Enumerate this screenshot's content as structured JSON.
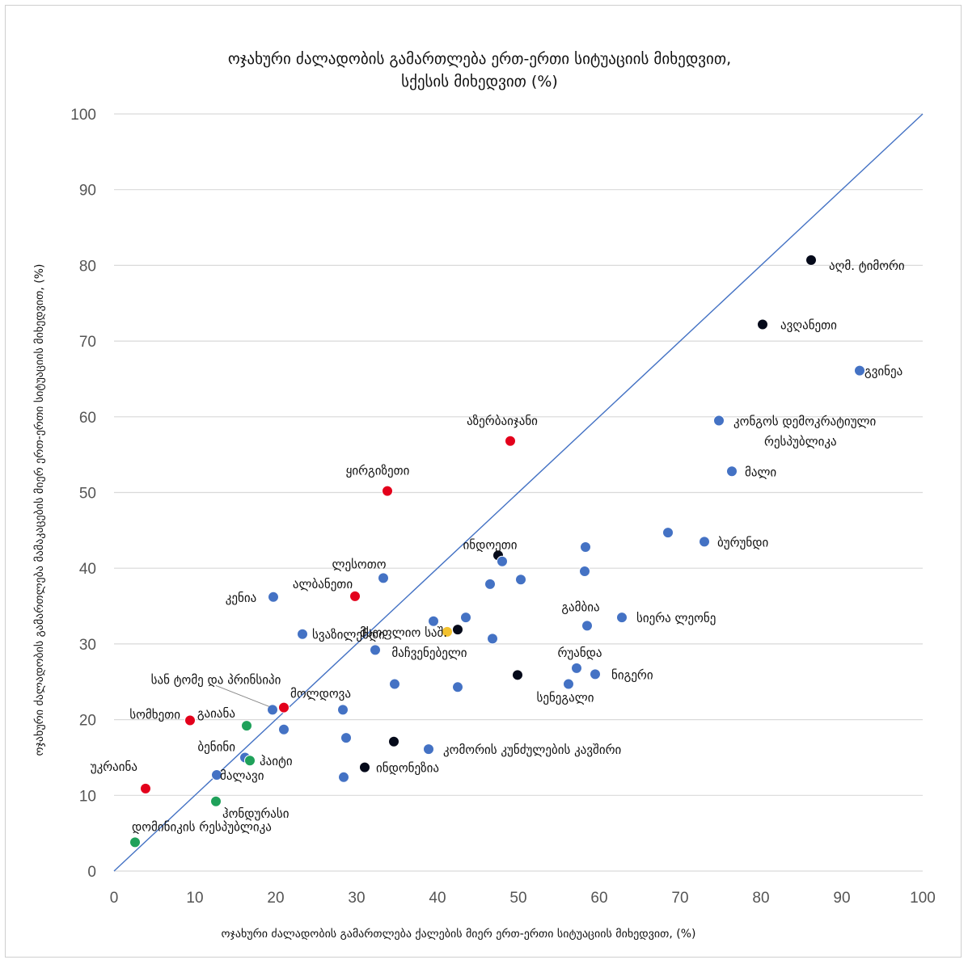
{
  "chart_data": {
    "type": "scatter",
    "title": [
      "ოჯახური ძალადობის გამართლება ერთ-ერთი სიტუაციის მიხედვით,",
      "სქესის  მიხედვით (%)"
    ],
    "xlabel": "ოჯახური ძალადობის გამართლება ქალების მიერ ერთ-ერთი სიტუაციის მიხედვით, (%)",
    "ylabel": "ოჯახური ძალადობის გამართლება მამაკაცების მიერ ერთ-ერთი სიტუაციის მიხედვით, (%)",
    "xlim": [
      0,
      100
    ],
    "ylim": [
      0,
      100
    ],
    "xticks": [
      0,
      10,
      20,
      30,
      40,
      50,
      60,
      70,
      80,
      90,
      100
    ],
    "yticks": [
      0,
      10,
      20,
      30,
      40,
      50,
      60,
      70,
      80,
      90,
      100
    ],
    "grid": "horizontal",
    "reference_line": {
      "from": [
        0,
        0
      ],
      "to": [
        100,
        100
      ],
      "color": "#4472c4"
    },
    "colors": {
      "blue": "#4472c4",
      "red": "#e3001b",
      "green": "#1fa15a",
      "black": "#050a1a",
      "gold": "#f2c12e"
    },
    "points": [
      {
        "x": 86.2,
        "y": 80.7,
        "color": "black",
        "label": "აღმ. ტიმორი"
      },
      {
        "x": 80.2,
        "y": 72.2,
        "color": "black",
        "label": "ავღანეთი"
      },
      {
        "x": 92.2,
        "y": 66.1,
        "color": "blue",
        "label": "გვინეა"
      },
      {
        "x": 74.8,
        "y": 59.5,
        "color": "blue",
        "label": "კონგოს დემოკრატიული რესპუბლიკა"
      },
      {
        "x": 76.4,
        "y": 52.8,
        "color": "blue",
        "label": "მალი"
      },
      {
        "x": 49.0,
        "y": 56.8,
        "color": "red",
        "label": "აზერბაიჯანი"
      },
      {
        "x": 33.8,
        "y": 50.2,
        "color": "red",
        "label": "ყირგიზეთი"
      },
      {
        "x": 68.5,
        "y": 44.7,
        "color": "blue",
        "label": ""
      },
      {
        "x": 73.0,
        "y": 43.5,
        "color": "blue",
        "label": "ბურუნდი"
      },
      {
        "x": 58.3,
        "y": 42.8,
        "color": "blue",
        "label": ""
      },
      {
        "x": 47.5,
        "y": 41.7,
        "color": "black",
        "label": "ინდოეთი"
      },
      {
        "x": 48.0,
        "y": 40.9,
        "color": "blue",
        "label": ""
      },
      {
        "x": 58.2,
        "y": 39.6,
        "color": "blue",
        "label": ""
      },
      {
        "x": 50.3,
        "y": 38.5,
        "color": "blue",
        "label": ""
      },
      {
        "x": 46.5,
        "y": 37.9,
        "color": "blue",
        "label": ""
      },
      {
        "x": 33.3,
        "y": 38.7,
        "color": "blue",
        "label": "ლესოთო"
      },
      {
        "x": 29.8,
        "y": 36.3,
        "color": "red",
        "label": "ალბანეთი"
      },
      {
        "x": 19.7,
        "y": 36.2,
        "color": "blue",
        "label": "კენია"
      },
      {
        "x": 62.8,
        "y": 33.5,
        "color": "blue",
        "label": "სიერა ლეონე"
      },
      {
        "x": 58.5,
        "y": 32.4,
        "color": "blue",
        "label": "გამბია"
      },
      {
        "x": 43.5,
        "y": 33.5,
        "color": "blue",
        "label": ""
      },
      {
        "x": 39.5,
        "y": 33.0,
        "color": "blue",
        "label": ""
      },
      {
        "x": 42.5,
        "y": 31.9,
        "color": "black",
        "label": ""
      },
      {
        "x": 41.2,
        "y": 31.6,
        "color": "gold",
        "label": "მსოფლიო საშ. მაჩვენებელი"
      },
      {
        "x": 23.3,
        "y": 31.3,
        "color": "blue",
        "label": "სვაზილენდი"
      },
      {
        "x": 46.8,
        "y": 30.7,
        "color": "blue",
        "label": ""
      },
      {
        "x": 32.3,
        "y": 29.2,
        "color": "blue",
        "label": ""
      },
      {
        "x": 57.2,
        "y": 26.8,
        "color": "blue",
        "label": "რუანდა"
      },
      {
        "x": 59.5,
        "y": 26.0,
        "color": "blue",
        "label": "ნიგერი"
      },
      {
        "x": 49.9,
        "y": 25.9,
        "color": "black",
        "label": ""
      },
      {
        "x": 56.2,
        "y": 24.7,
        "color": "blue",
        "label": "სენეგალი"
      },
      {
        "x": 34.7,
        "y": 24.7,
        "color": "blue",
        "label": ""
      },
      {
        "x": 42.5,
        "y": 24.3,
        "color": "blue",
        "label": ""
      },
      {
        "x": 21.0,
        "y": 21.6,
        "color": "red",
        "label": "მოლდოვა"
      },
      {
        "x": 19.6,
        "y": 21.3,
        "color": "blue",
        "label": "სან ტომე და პრინსიპი"
      },
      {
        "x": 28.3,
        "y": 21.3,
        "color": "blue",
        "label": ""
      },
      {
        "x": 9.4,
        "y": 19.9,
        "color": "red",
        "label": "სომხეთი"
      },
      {
        "x": 16.4,
        "y": 19.2,
        "color": "green",
        "label": "გაიანა"
      },
      {
        "x": 21.0,
        "y": 18.7,
        "color": "blue",
        "label": ""
      },
      {
        "x": 28.7,
        "y": 17.6,
        "color": "blue",
        "label": ""
      },
      {
        "x": 34.6,
        "y": 17.1,
        "color": "black",
        "label": ""
      },
      {
        "x": 38.9,
        "y": 16.1,
        "color": "blue",
        "label": "კომორის კუნძულების კავშირი"
      },
      {
        "x": 16.2,
        "y": 15.0,
        "color": "blue",
        "label": "ბენინი"
      },
      {
        "x": 16.8,
        "y": 14.6,
        "color": "green",
        "label": "ჰაიტი"
      },
      {
        "x": 31.0,
        "y": 13.7,
        "color": "black",
        "label": "ინდონეზია"
      },
      {
        "x": 12.7,
        "y": 12.7,
        "color": "blue",
        "label": "მალავი"
      },
      {
        "x": 28.4,
        "y": 12.4,
        "color": "blue",
        "label": ""
      },
      {
        "x": 3.9,
        "y": 10.9,
        "color": "red",
        "label": "უკრაინა"
      },
      {
        "x": 12.6,
        "y": 9.2,
        "color": "green",
        "label": "ჰონდურასი"
      },
      {
        "x": 2.6,
        "y": 3.8,
        "color": "green",
        "label": "დომინიკის რესპუბლიკა"
      }
    ]
  }
}
